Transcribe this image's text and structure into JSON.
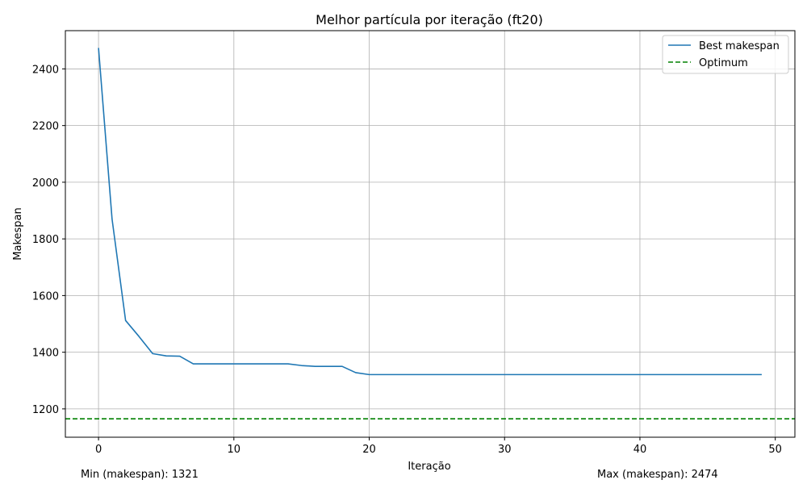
{
  "chart_data": {
    "type": "line",
    "title": "Melhor partícula por iteração (ft20)",
    "xlabel": "Iteração",
    "ylabel": "Makespan",
    "xlim": [
      -2.45,
      51.45
    ],
    "ylim": [
      1100,
      2535
    ],
    "xticks": [
      0,
      10,
      20,
      30,
      40,
      50
    ],
    "yticks": [
      1200,
      1400,
      1600,
      1800,
      2000,
      2200,
      2400
    ],
    "grid": true,
    "legend_position": "top-right",
    "series": [
      {
        "name": "Best makespan",
        "color": "#1f77b4",
        "style": "solid",
        "x": [
          0,
          1,
          2,
          3,
          4,
          5,
          6,
          7,
          8,
          9,
          10,
          11,
          12,
          13,
          14,
          15,
          16,
          17,
          18,
          19,
          20,
          21,
          22,
          23,
          24,
          25,
          26,
          27,
          28,
          29,
          30,
          31,
          32,
          33,
          34,
          35,
          36,
          37,
          38,
          39,
          40,
          41,
          42,
          43,
          44,
          45,
          46,
          47,
          48,
          49
        ],
        "y": [
          2474,
          1870,
          1512,
          1455,
          1395,
          1387,
          1386,
          1359,
          1359,
          1359,
          1359,
          1359,
          1359,
          1359,
          1359,
          1353,
          1350,
          1350,
          1350,
          1328,
          1321,
          1321,
          1321,
          1321,
          1321,
          1321,
          1321,
          1321,
          1321,
          1321,
          1321,
          1321,
          1321,
          1321,
          1321,
          1321,
          1321,
          1321,
          1321,
          1321,
          1321,
          1321,
          1321,
          1321,
          1321,
          1321,
          1321,
          1321,
          1321,
          1321
        ]
      },
      {
        "name": "Optimum",
        "color": "#008000",
        "style": "dashed",
        "hline": 1165
      }
    ]
  },
  "notes": {
    "min_text": "Min (makespan): 1321",
    "max_text": "Max (makespan): 2474"
  }
}
